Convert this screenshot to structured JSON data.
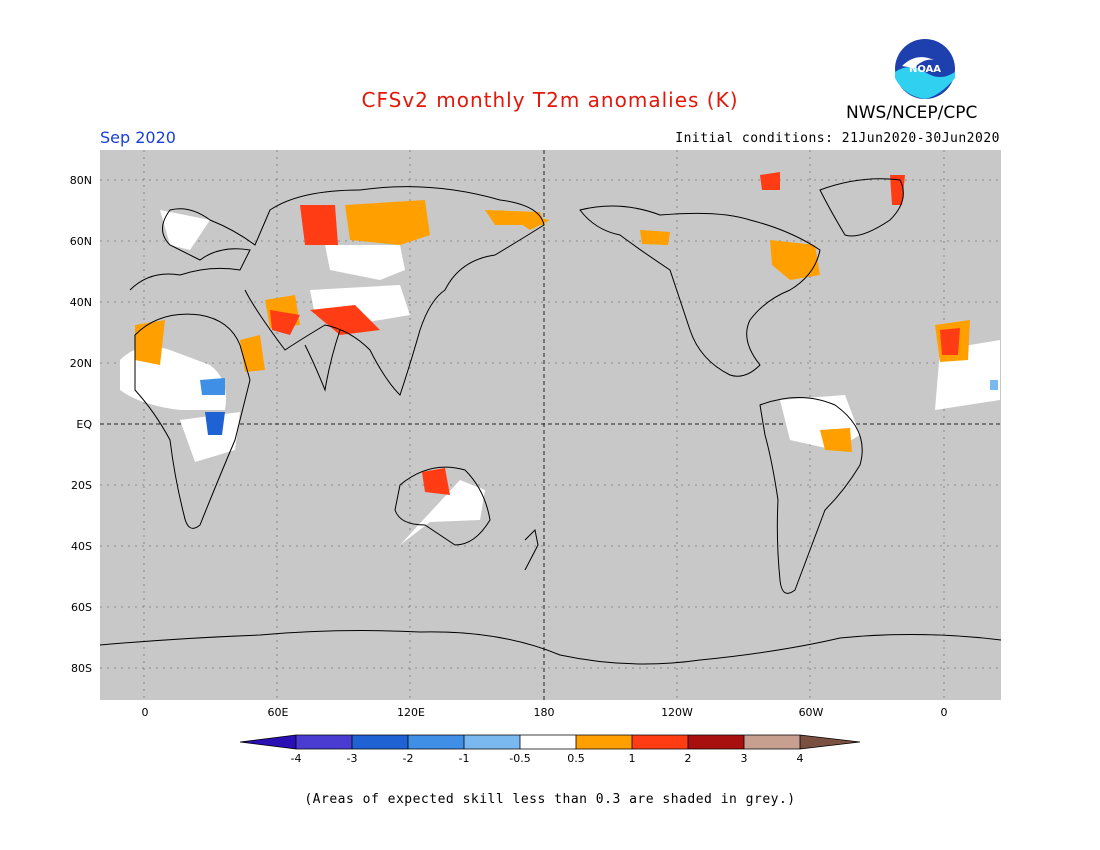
{
  "header": {
    "title": "CFSv2 monthly T2m anomalies (K)",
    "month": "Sep 2020",
    "initial_conditions": "Initial conditions: 21Jun2020-30Jun2020",
    "agency": "NWS/NCEP/CPC",
    "logo_text": "NOAA"
  },
  "map": {
    "lat_labels": [
      "80N",
      "60N",
      "40N",
      "20N",
      "EQ",
      "20S",
      "40S",
      "60S",
      "80S"
    ],
    "lon_labels": [
      "0",
      "60E",
      "120E",
      "180",
      "120W",
      "60W",
      "0"
    ],
    "background_color": "#c8c8c8",
    "regions": [
      {
        "name": "western-russia",
        "level": "0.5 to 1"
      },
      {
        "name": "central-asia",
        "level": "1 to 2"
      },
      {
        "name": "sahara",
        "level": "0.5 to 1"
      },
      {
        "name": "east-africa",
        "level": "-3 to -1"
      },
      {
        "name": "northern-australia",
        "level": "1 to 2"
      },
      {
        "name": "eastern-canada",
        "level": "0.5 to 1"
      },
      {
        "name": "greenland",
        "level": "1 to 2"
      },
      {
        "name": "brazil",
        "level": "0.5 to 1"
      }
    ]
  },
  "colorbar": {
    "levels": [
      "-4",
      "-3",
      "-2",
      "-1",
      "-0.5",
      "0.5",
      "1",
      "2",
      "3",
      "4"
    ],
    "colors": [
      "#2a0fb4",
      "#4a3cd0",
      "#1f62d4",
      "#3f8fe6",
      "#7ab8f0",
      "#ffffff",
      "#ffa000",
      "#ff3c14",
      "#a80f0f",
      "#c8a090",
      "#7a5040"
    ]
  },
  "footer": {
    "note": "(Areas of expected skill less than 0.3 are shaded in grey.)"
  }
}
